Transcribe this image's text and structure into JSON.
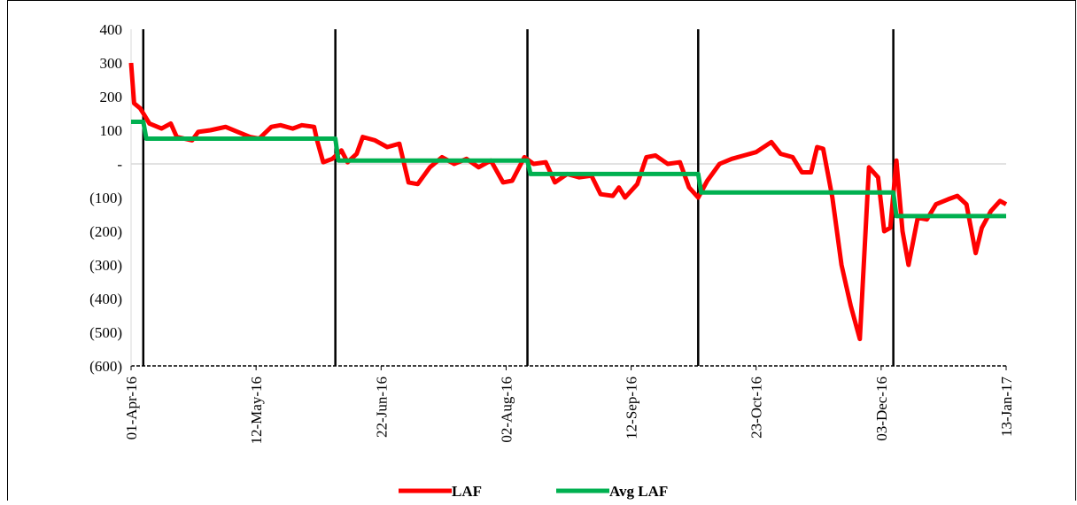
{
  "chart_data": {
    "type": "line",
    "xlim": [
      "2016-04-01",
      "2017-01-13"
    ],
    "xticks": [
      {
        "value": "2016-04-01",
        "label": "01-Apr-16"
      },
      {
        "value": "2016-05-12",
        "label": "12-May-16"
      },
      {
        "value": "2016-06-22",
        "label": "22-Jun-16"
      },
      {
        "value": "2016-08-02",
        "label": "02-Aug-16"
      },
      {
        "value": "2016-09-12",
        "label": "12-Sep-16"
      },
      {
        "value": "2016-10-23",
        "label": "23-Oct-16"
      },
      {
        "value": "2016-12-03",
        "label": "03-Dec-16"
      },
      {
        "value": "2017-01-13",
        "label": "13-Jan-17"
      }
    ],
    "ylim": [
      -600,
      400
    ],
    "yticks": [
      {
        "value": -600,
        "label": "(600)"
      },
      {
        "value": -500,
        "label": "(500)"
      },
      {
        "value": -400,
        "label": "(400)"
      },
      {
        "value": -300,
        "label": "(300)"
      },
      {
        "value": -200,
        "label": "(200)"
      },
      {
        "value": -100,
        "label": "(100)"
      },
      {
        "value": 0,
        "label": "-"
      },
      100,
      200,
      300,
      400
    ],
    "vlines": [
      "2016-04-05",
      "2016-06-07",
      "2016-08-09",
      "2016-10-04",
      "2016-12-07"
    ],
    "legend": "bottom",
    "series": [
      {
        "name": "LAF",
        "color": "#ff0000",
        "x": [
          "2016-04-01",
          "2016-04-02",
          "2016-04-04",
          "2016-04-05",
          "2016-04-07",
          "2016-04-11",
          "2016-04-14",
          "2016-04-16",
          "2016-04-21",
          "2016-04-23",
          "2016-04-27",
          "2016-05-02",
          "2016-05-06",
          "2016-05-10",
          "2016-05-13",
          "2016-05-17",
          "2016-05-20",
          "2016-05-24",
          "2016-05-27",
          "2016-05-31",
          "2016-06-01",
          "2016-06-03",
          "2016-06-06",
          "2016-06-09",
          "2016-06-11",
          "2016-06-14",
          "2016-06-16",
          "2016-06-20",
          "2016-06-24",
          "2016-06-28",
          "2016-07-01",
          "2016-07-04",
          "2016-07-08",
          "2016-07-12",
          "2016-07-16",
          "2016-07-20",
          "2016-07-24",
          "2016-07-28",
          "2016-08-01",
          "2016-08-04",
          "2016-08-08",
          "2016-08-11",
          "2016-08-15",
          "2016-08-18",
          "2016-08-22",
          "2016-08-26",
          "2016-08-30",
          "2016-09-02",
          "2016-09-06",
          "2016-09-08",
          "2016-09-10",
          "2016-09-14",
          "2016-09-17",
          "2016-09-20",
          "2016-09-24",
          "2016-09-28",
          "2016-10-01",
          "2016-10-04",
          "2016-10-07",
          "2016-10-11",
          "2016-10-15",
          "2016-10-19",
          "2016-10-23",
          "2016-10-28",
          "2016-10-31",
          "2016-11-04",
          "2016-11-07",
          "2016-11-10",
          "2016-11-12",
          "2016-11-14",
          "2016-11-17",
          "2016-11-20",
          "2016-11-23",
          "2016-11-26",
          "2016-11-29",
          "2016-12-02",
          "2016-12-04",
          "2016-12-06",
          "2016-12-08",
          "2016-12-10",
          "2016-12-12",
          "2016-12-15",
          "2016-12-18",
          "2016-12-21",
          "2016-12-25",
          "2016-12-28",
          "2016-12-31",
          "2017-01-03",
          "2017-01-05",
          "2017-01-08",
          "2017-01-11",
          "2017-01-13"
        ],
        "values": [
          300,
          180,
          165,
          150,
          120,
          105,
          120,
          80,
          70,
          95,
          100,
          110,
          95,
          80,
          75,
          110,
          115,
          105,
          115,
          110,
          70,
          5,
          15,
          40,
          5,
          30,
          80,
          70,
          50,
          60,
          -55,
          -60,
          -10,
          20,
          0,
          15,
          -10,
          10,
          -55,
          -50,
          20,
          0,
          5,
          -55,
          -30,
          -40,
          -35,
          -90,
          -95,
          -70,
          -100,
          -60,
          20,
          25,
          0,
          5,
          -70,
          -100,
          -50,
          0,
          15,
          25,
          35,
          65,
          30,
          20,
          -25,
          -25,
          50,
          45,
          -100,
          -300,
          -420,
          -520,
          -10,
          -40,
          -200,
          -190,
          10,
          -200,
          -300,
          -160,
          -165,
          -120,
          -105,
          -95,
          -120,
          -265,
          -190,
          -140,
          -110,
          -120
        ]
      },
      {
        "name": "Avg LAF",
        "color": "#00b050",
        "x": [
          "2016-04-01",
          "2016-04-05",
          "2016-04-06",
          "2016-06-07",
          "2016-06-08",
          "2016-08-09",
          "2016-08-10",
          "2016-10-04",
          "2016-10-05",
          "2016-12-07",
          "2016-12-08",
          "2017-01-13"
        ],
        "values": [
          125,
          125,
          75,
          75,
          10,
          10,
          -30,
          -30,
          -85,
          -85,
          -155,
          -155
        ]
      }
    ]
  }
}
